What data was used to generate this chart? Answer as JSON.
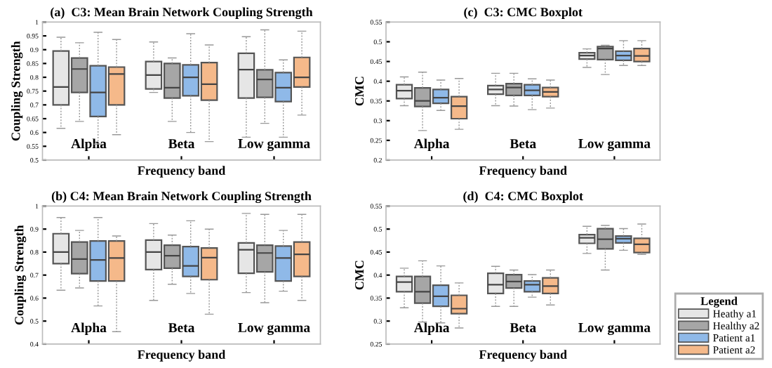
{
  "chart_data": [
    {
      "type": "box",
      "title": "(a)  C3: Mean Brain Network Coupling Strength",
      "xlabel": "Frequency band",
      "ylabel": "Coupling Strength",
      "categories": [
        "Alpha",
        "Beta",
        "Low gamma"
      ],
      "legend": "bottom right",
      "legend_title": "Legend",
      "ylim": [
        0.5,
        1
      ],
      "yticks": [
        0.5,
        0.55,
        0.6,
        0.65,
        0.7,
        0.75,
        0.8,
        0.85,
        0.9,
        0.95,
        1
      ],
      "series": [
        {
          "name": "Heathy a1",
          "color": "#e6e6e6",
          "boxes": [
            {
              "low": 0.615,
              "q1": 0.7,
              "median": 0.765,
              "q3": 0.895,
              "high": 0.945
            },
            {
              "low": 0.745,
              "q1": 0.758,
              "median": 0.808,
              "q3": 0.857,
              "high": 0.928
            },
            {
              "low": 0.583,
              "q1": 0.725,
              "median": 0.828,
              "q3": 0.887,
              "high": 0.947
            }
          ]
        },
        {
          "name": "Healthy a2",
          "color": "#a6a6a6",
          "boxes": [
            {
              "low": 0.64,
              "q1": 0.745,
              "median": 0.83,
              "q3": 0.87,
              "high": 0.925
            },
            {
              "low": 0.64,
              "q1": 0.725,
              "median": 0.762,
              "q3": 0.85,
              "high": 0.87
            },
            {
              "low": 0.633,
              "q1": 0.727,
              "median": 0.792,
              "q3": 0.827,
              "high": 0.972
            }
          ]
        },
        {
          "name": "Patient a1",
          "color": "#8fb9e8",
          "boxes": [
            {
              "low": 0.558,
              "q1": 0.658,
              "median": 0.745,
              "q3": 0.842,
              "high": 0.963
            },
            {
              "low": 0.6,
              "q1": 0.733,
              "median": 0.8,
              "q3": 0.845,
              "high": 0.958
            },
            {
              "low": 0.583,
              "q1": 0.712,
              "median": 0.762,
              "q3": 0.817,
              "high": 0.863
            }
          ]
        },
        {
          "name": "Patient a2",
          "color": "#f5b98a",
          "boxes": [
            {
              "low": 0.592,
              "q1": 0.7,
              "median": 0.812,
              "q3": 0.837,
              "high": 0.937
            },
            {
              "low": 0.567,
              "q1": 0.717,
              "median": 0.775,
              "q3": 0.853,
              "high": 0.917
            },
            {
              "low": 0.663,
              "q1": 0.765,
              "median": 0.8,
              "q3": 0.872,
              "high": 0.967
            }
          ]
        }
      ]
    },
    {
      "type": "box",
      "title": "(c)  C3: CMC Boxplot",
      "xlabel": "Frequency band",
      "ylabel": "CMC",
      "categories": [
        "Alpha",
        "Beta",
        "Low gamma"
      ],
      "ylim": [
        0.2,
        0.55
      ],
      "yticks": [
        0.2,
        0.25,
        0.3,
        0.35,
        0.4,
        0.45,
        0.5,
        0.55
      ],
      "series": [
        {
          "color": "#e6e6e6",
          "boxes": [
            {
              "low": 0.338,
              "q1": 0.356,
              "median": 0.376,
              "q3": 0.391,
              "high": 0.411
            },
            {
              "low": 0.338,
              "q1": 0.367,
              "median": 0.379,
              "q3": 0.389,
              "high": 0.42
            },
            {
              "low": 0.435,
              "q1": 0.456,
              "median": 0.465,
              "q3": 0.472,
              "high": 0.482
            }
          ]
        },
        {
          "color": "#a6a6a6",
          "boxes": [
            {
              "low": 0.275,
              "q1": 0.336,
              "median": 0.35,
              "q3": 0.383,
              "high": 0.423
            },
            {
              "low": 0.337,
              "q1": 0.364,
              "median": 0.384,
              "q3": 0.394,
              "high": 0.42
            },
            {
              "low": 0.417,
              "q1": 0.455,
              "median": 0.483,
              "q3": 0.488,
              "high": 0.491
            }
          ]
        },
        {
          "color": "#8fb9e8",
          "boxes": [
            {
              "low": 0.326,
              "q1": 0.344,
              "median": 0.358,
              "q3": 0.379,
              "high": 0.403
            },
            {
              "low": 0.328,
              "q1": 0.364,
              "median": 0.377,
              "q3": 0.391,
              "high": 0.406
            },
            {
              "low": 0.44,
              "q1": 0.453,
              "median": 0.465,
              "q3": 0.476,
              "high": 0.503
            }
          ]
        },
        {
          "color": "#f5b98a",
          "boxes": [
            {
              "low": 0.278,
              "q1": 0.305,
              "median": 0.337,
              "q3": 0.361,
              "high": 0.407
            },
            {
              "low": 0.332,
              "q1": 0.361,
              "median": 0.373,
              "q3": 0.384,
              "high": 0.403
            },
            {
              "low": 0.44,
              "q1": 0.45,
              "median": 0.464,
              "q3": 0.483,
              "high": 0.503
            }
          ]
        }
      ]
    },
    {
      "type": "box",
      "title": "(b) C4: Mean Brain Network Coupling Strength",
      "xlabel": "Frequency band",
      "ylabel": "Coupling Strength",
      "categories": [
        "Alpha",
        "Beta",
        "Low gamma"
      ],
      "ylim": [
        0.4,
        1
      ],
      "yticks": [
        0.4,
        0.5,
        0.6,
        0.7,
        0.8,
        0.9,
        1
      ],
      "series": [
        {
          "color": "#e6e6e6",
          "boxes": [
            {
              "low": 0.634,
              "q1": 0.75,
              "median": 0.8,
              "q3": 0.88,
              "high": 0.95
            },
            {
              "low": 0.59,
              "q1": 0.724,
              "median": 0.8,
              "q3": 0.852,
              "high": 0.924
            },
            {
              "low": 0.624,
              "q1": 0.708,
              "median": 0.81,
              "q3": 0.84,
              "high": 0.968
            }
          ]
        },
        {
          "color": "#a6a6a6",
          "boxes": [
            {
              "low": 0.644,
              "q1": 0.706,
              "median": 0.77,
              "q3": 0.844,
              "high": 0.894
            },
            {
              "low": 0.66,
              "q1": 0.73,
              "median": 0.784,
              "q3": 0.83,
              "high": 0.874
            },
            {
              "low": 0.58,
              "q1": 0.714,
              "median": 0.796,
              "q3": 0.83,
              "high": 0.964
            }
          ]
        },
        {
          "color": "#8fb9e8",
          "boxes": [
            {
              "low": 0.566,
              "q1": 0.674,
              "median": 0.766,
              "q3": 0.848,
              "high": 0.95
            },
            {
              "low": 0.62,
              "q1": 0.694,
              "median": 0.74,
              "q3": 0.824,
              "high": 0.936
            },
            {
              "low": 0.63,
              "q1": 0.674,
              "median": 0.774,
              "q3": 0.826,
              "high": 0.894
            }
          ]
        },
        {
          "color": "#f5b98a",
          "boxes": [
            {
              "low": 0.454,
              "q1": 0.674,
              "median": 0.774,
              "q3": 0.848,
              "high": 0.87
            },
            {
              "low": 0.53,
              "q1": 0.68,
              "median": 0.776,
              "q3": 0.818,
              "high": 0.9
            },
            {
              "low": 0.59,
              "q1": 0.694,
              "median": 0.79,
              "q3": 0.844,
              "high": 0.964
            }
          ]
        }
      ]
    },
    {
      "type": "box",
      "title": "(d)  C4: CMC Boxplot",
      "xlabel": "Frequency band",
      "ylabel": "CMC",
      "categories": [
        "Alpha",
        "Beta",
        "Low gamma"
      ],
      "ylim": [
        0.25,
        0.55
      ],
      "yticks": [
        0.25,
        0.3,
        0.35,
        0.4,
        0.45,
        0.5,
        0.55
      ],
      "series": [
        {
          "color": "#e6e6e6",
          "boxes": [
            {
              "low": 0.329,
              "q1": 0.364,
              "median": 0.385,
              "q3": 0.397,
              "high": 0.415
            },
            {
              "low": 0.332,
              "q1": 0.36,
              "median": 0.379,
              "q3": 0.404,
              "high": 0.419
            },
            {
              "low": 0.447,
              "q1": 0.469,
              "median": 0.481,
              "q3": 0.488,
              "high": 0.506
            }
          ]
        },
        {
          "color": "#a6a6a6",
          "boxes": [
            {
              "low": 0.298,
              "q1": 0.339,
              "median": 0.364,
              "q3": 0.397,
              "high": 0.431
            },
            {
              "low": 0.332,
              "q1": 0.372,
              "median": 0.386,
              "q3": 0.401,
              "high": 0.411
            },
            {
              "low": 0.411,
              "q1": 0.457,
              "median": 0.478,
              "q3": 0.501,
              "high": 0.508
            }
          ]
        },
        {
          "color": "#8fb9e8",
          "boxes": [
            {
              "low": 0.296,
              "q1": 0.332,
              "median": 0.354,
              "q3": 0.378,
              "high": 0.42
            },
            {
              "low": 0.352,
              "q1": 0.364,
              "median": 0.379,
              "q3": 0.387,
              "high": 0.401
            },
            {
              "low": 0.454,
              "q1": 0.47,
              "median": 0.479,
              "q3": 0.485,
              "high": 0.501
            }
          ]
        },
        {
          "color": "#f5b98a",
          "boxes": [
            {
              "low": 0.285,
              "q1": 0.316,
              "median": 0.327,
              "q3": 0.356,
              "high": 0.383
            },
            {
              "low": 0.335,
              "q1": 0.36,
              "median": 0.376,
              "q3": 0.394,
              "high": 0.411
            },
            {
              "low": 0.445,
              "q1": 0.449,
              "median": 0.467,
              "q3": 0.48,
              "high": 0.511
            }
          ]
        }
      ]
    }
  ]
}
